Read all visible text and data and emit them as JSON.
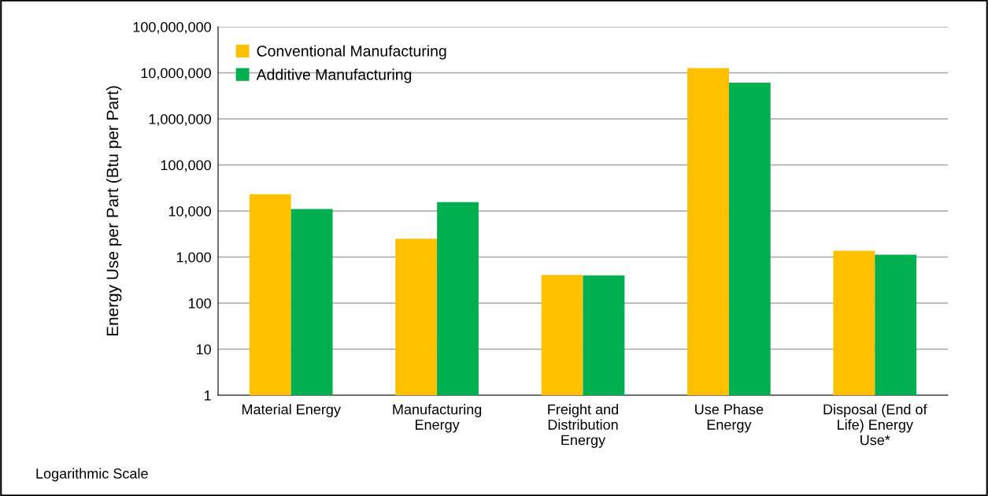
{
  "chart_data": {
    "type": "bar",
    "ylabel": "Energy Use per Part (Btu per Part)",
    "categories": [
      "Material Energy",
      "Manufacturing\nEnergy",
      "Freight and\nDistribution\nEnergy",
      "Use Phase\nEnergy",
      "Disposal (End of\nLife) Energy\nUse*"
    ],
    "series": [
      {
        "name": "Conventional Manufacturing",
        "color": "#ffc000",
        "values": [
          23000,
          2500,
          410,
          12700000,
          1370
        ]
      },
      {
        "name": "Additive Manufacturing",
        "color": "#00b050",
        "values": [
          11000,
          15500,
          400,
          6100000,
          1120
        ]
      }
    ],
    "log": "y",
    "ylim": [
      1,
      100000000
    ],
    "yticks": [
      {
        "value": 1,
        "label": "1"
      },
      {
        "value": 10,
        "label": "10"
      },
      {
        "value": 100,
        "label": "100"
      },
      {
        "value": 1000,
        "label": "1,000"
      },
      {
        "value": 10000,
        "label": "10,000"
      },
      {
        "value": 100000,
        "label": "100,000"
      },
      {
        "value": 1000000,
        "label": "1,000,000"
      },
      {
        "value": 10000000,
        "label": "10,000,000"
      },
      {
        "value": 100000000,
        "label": "100,000,000"
      }
    ],
    "grid": "y",
    "legend": "top left",
    "annotations": [
      "Logarithmic Scale"
    ]
  }
}
